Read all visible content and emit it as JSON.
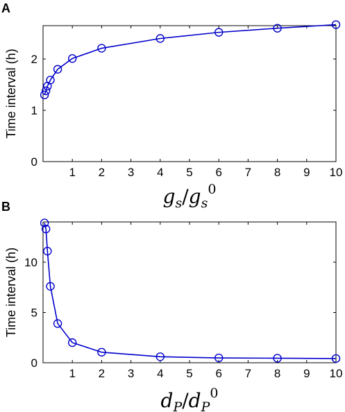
{
  "chart_data": [
    {
      "type": "line",
      "panel_label": "A",
      "xlabel": {
        "base": "g",
        "sub": "s",
        "sep": "/",
        "base2": "g",
        "sub2": "s",
        "sup": "0"
      },
      "ylabel": "Time interval (h)",
      "xlim": [
        0,
        10
      ],
      "ylim": [
        0,
        2.65
      ],
      "xticks": [
        1,
        2,
        3,
        4,
        5,
        6,
        7,
        8,
        9,
        10
      ],
      "yticks": [
        0,
        1,
        2
      ],
      "line_color": "#0000cc",
      "marker": "circle",
      "series": [
        {
          "x": [
            0.05,
            0.1,
            0.15,
            0.25,
            0.5,
            1,
            2,
            4,
            6,
            8,
            10
          ],
          "y": [
            1.3,
            1.38,
            1.47,
            1.59,
            1.8,
            2.01,
            2.21,
            2.4,
            2.52,
            2.6,
            2.67
          ]
        }
      ]
    },
    {
      "type": "line",
      "panel_label": "B",
      "xlabel": {
        "base": "d",
        "sub": "P",
        "sep": "/",
        "base2": "d",
        "sub2": "P",
        "sup": "0"
      },
      "ylabel": "Time interval (h)",
      "xlim": [
        0,
        10
      ],
      "ylim": [
        0,
        14
      ],
      "xticks": [
        1,
        2,
        3,
        4,
        5,
        6,
        7,
        8,
        9,
        10
      ],
      "yticks": [
        0,
        5,
        10
      ],
      "line_color": "#0000cc",
      "marker": "circle",
      "series": [
        {
          "x": [
            0.05,
            0.1,
            0.15,
            0.25,
            0.5,
            1,
            2,
            4,
            6,
            8,
            10
          ],
          "y": [
            13.9,
            13.3,
            11.1,
            7.6,
            3.9,
            2.0,
            1.05,
            0.6,
            0.48,
            0.45,
            0.42
          ]
        }
      ]
    }
  ]
}
